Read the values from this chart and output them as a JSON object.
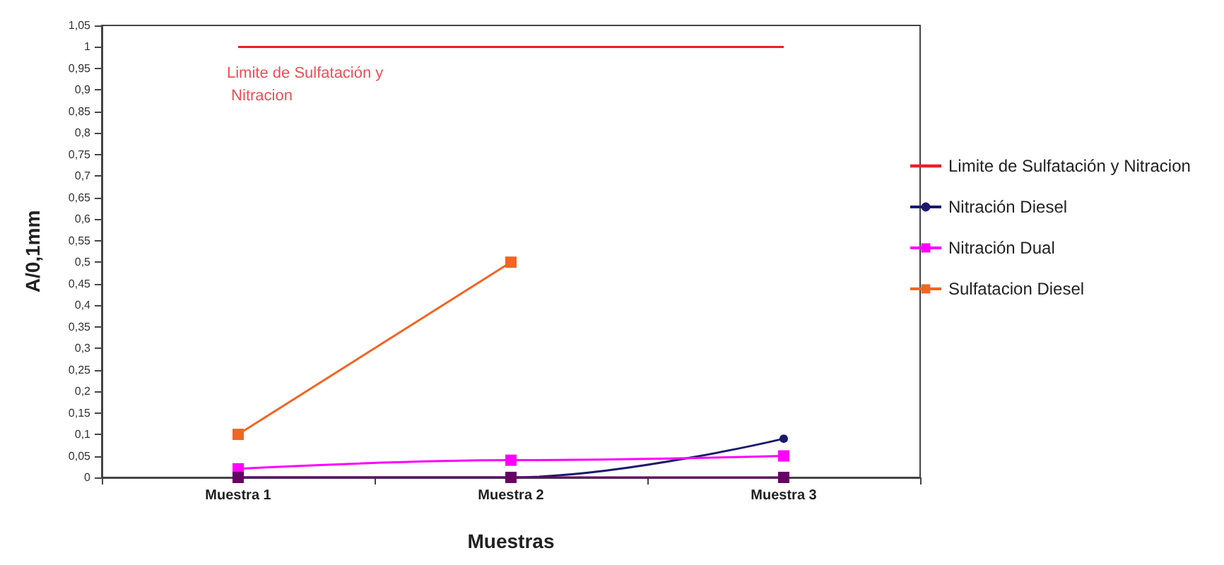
{
  "chart_data": {
    "type": "line",
    "xlabel": "Muestras",
    "ylabel": "A/0,1mm",
    "categories": [
      "Muestra 1",
      "Muestra 2",
      "Muestra 3"
    ],
    "series": [
      {
        "name": "Limite de Sulfatación y Nitracion",
        "color": "#e8202a",
        "values": [
          1,
          1,
          1
        ],
        "marker": "none"
      },
      {
        "name": "Nitración Diesel",
        "color": "#1a1a6e",
        "values": [
          0,
          0,
          0.09
        ],
        "marker": "circle"
      },
      {
        "name": "Nitración Dual",
        "color": "#ff00ff",
        "values": [
          0.02,
          0.04,
          0.05
        ],
        "marker": "square"
      },
      {
        "name": "Sulfatacion Diesel",
        "color": "#f26522",
        "values": [
          0.1,
          0.5,
          null
        ],
        "marker": "square"
      },
      {
        "color": "#660066",
        "values": [
          0,
          0,
          0
        ],
        "marker": "square"
      }
    ],
    "annotations": [
      {
        "text": "Limite de Sulfatación y Nitracion",
        "x": "Muestra 1",
        "y": 1
      }
    ],
    "ylim": [
      0,
      1.05
    ],
    "yticks": [
      0,
      {
        "value": 0.05,
        "label": "0,05"
      },
      {
        "value": 0.1,
        "label": "0,1"
      },
      {
        "value": 0.15,
        "label": "0,15"
      },
      {
        "value": 0.2,
        "label": "0,2"
      },
      {
        "value": 0.25,
        "label": "0,25"
      },
      {
        "value": 0.3,
        "label": "0,3"
      },
      {
        "value": 0.35,
        "label": "0,35"
      },
      {
        "value": 0.4,
        "label": "0,4"
      },
      {
        "value": 0.45,
        "label": "0,45"
      },
      {
        "value": 0.5,
        "label": "0,5"
      },
      {
        "value": 0.55,
        "label": "0,55"
      },
      {
        "value": 0.6,
        "label": "0,6"
      },
      {
        "value": 0.65,
        "label": "0,65"
      },
      {
        "value": 0.7,
        "label": "0,7"
      },
      {
        "value": 0.75,
        "label": "0,75"
      },
      {
        "value": 0.8,
        "label": "0,8"
      },
      {
        "value": 0.85,
        "label": "0,85"
      },
      {
        "value": 0.9,
        "label": "0,9"
      },
      {
        "value": 0.95,
        "label": "0,95"
      },
      1,
      {
        "value": 1.05,
        "label": "1,05"
      }
    ],
    "grid": false,
    "legend": "right"
  }
}
